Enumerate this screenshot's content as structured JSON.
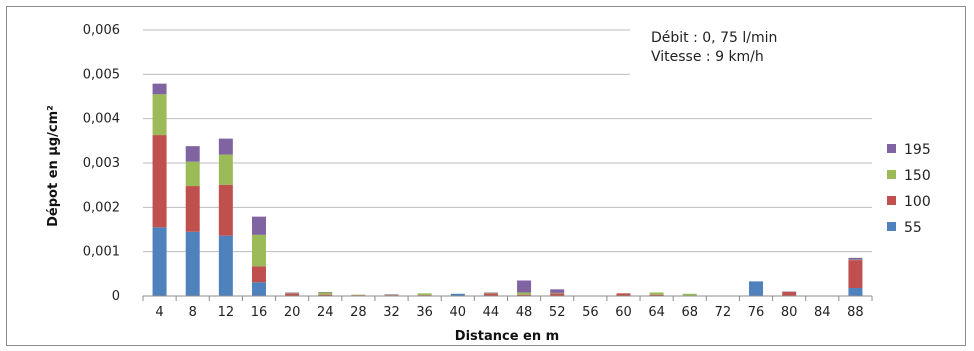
{
  "chart_data": {
    "type": "bar",
    "stacked": true,
    "categories": [
      "4",
      "8",
      "12",
      "16",
      "20",
      "24",
      "28",
      "32",
      "36",
      "40",
      "44",
      "48",
      "52",
      "56",
      "60",
      "64",
      "68",
      "72",
      "76",
      "80",
      "84",
      "88"
    ],
    "series": [
      {
        "name": "55",
        "color": "#4f81bd",
        "values": [
          0.00155,
          0.00145,
          0.00136,
          0.00031,
          1e-05,
          1e-05,
          0.0,
          1e-05,
          1e-05,
          5e-05,
          1e-05,
          1e-05,
          1e-05,
          1e-05,
          1e-05,
          1e-05,
          1e-05,
          0.0,
          0.00033,
          1e-05,
          0.0,
          0.00018
        ]
      },
      {
        "name": "100",
        "color": "#c0504d",
        "values": [
          0.00208,
          0.00103,
          0.00115,
          0.00036,
          5e-05,
          2e-05,
          2e-05,
          1e-05,
          1e-05,
          0.0,
          5e-05,
          2e-05,
          5e-05,
          0.0,
          5e-05,
          2e-05,
          0.0,
          0.0,
          0.0,
          8e-05,
          0.0,
          0.00063
        ]
      },
      {
        "name": "150",
        "color": "#9bbb59",
        "values": [
          0.00092,
          0.00055,
          0.00068,
          0.00071,
          1e-05,
          5e-05,
          1e-05,
          1e-05,
          4e-05,
          0.0,
          1e-05,
          5e-05,
          1e-05,
          0.0,
          0.0,
          5e-05,
          4e-05,
          0.0,
          0.0,
          0.0,
          0.0,
          1e-05
        ]
      },
      {
        "name": "195",
        "color": "#8064a2",
        "values": [
          0.00024,
          0.00035,
          0.00036,
          0.00041,
          1e-05,
          1e-05,
          0.0,
          1e-05,
          0.0,
          0.0,
          1e-05,
          0.00027,
          8e-05,
          0.0,
          0.0,
          0.0,
          0.0,
          0.0,
          0.0,
          1e-05,
          0.0,
          4e-05
        ]
      }
    ],
    "yticks": [
      "0",
      "0,001",
      "0,002",
      "0,003",
      "0,004",
      "0,005",
      "0,006"
    ],
    "ylim": [
      0,
      0.006
    ],
    "xlabel": "Distance en m",
    "ylabel": "Dépot en µg/cm²",
    "annotation": [
      "Débit : 0, 75 l/min",
      "Vitesse : 9 km/h"
    ],
    "legend_position": "right",
    "grid": "horizontal"
  }
}
